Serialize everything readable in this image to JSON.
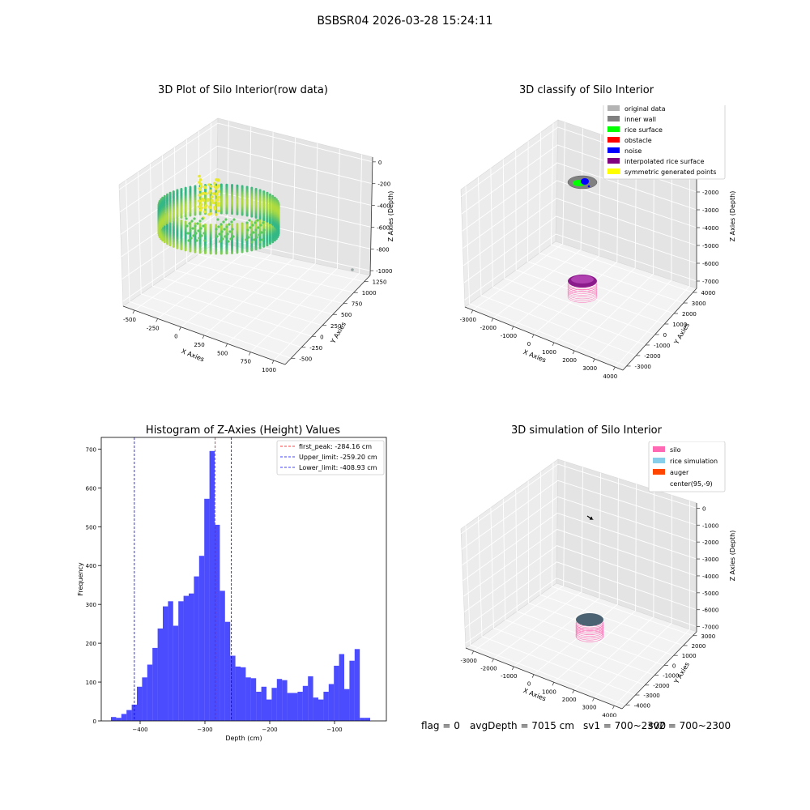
{
  "figure": {
    "suptitle": "BSBSR04 2026-03-28 15:24:11"
  },
  "panels": {
    "raw": {
      "title": "3D Plot of Silo Interior(row data)",
      "xlabel": "X Axies",
      "ylabel": "Y Axies",
      "zlabel": "Z Axies (Depth)",
      "xticks": [
        "-500",
        "-250",
        "0",
        "250",
        "500",
        "750",
        "1000"
      ],
      "yticks": [
        "-500",
        "-250",
        "0",
        "250",
        "500",
        "750",
        "1000",
        "1250"
      ],
      "zticks": [
        "0",
        "-200",
        "-400",
        "-600",
        "-800",
        "-1000"
      ]
    },
    "classify": {
      "title": "3D classify of Silo Interior",
      "xlabel": "X Axies",
      "ylabel": "Y Axies",
      "zlabel": "Z Axies (Depth)",
      "xticks": [
        "-3000",
        "-2000",
        "-1000",
        "0",
        "1000",
        "2000",
        "3000",
        "4000"
      ],
      "yticks": [
        "-3000",
        "-2000",
        "-1000",
        "0",
        "1000",
        "2000",
        "3000",
        "4000"
      ],
      "zticks": [
        "-1000",
        "-2000",
        "-3000",
        "-4000",
        "-5000",
        "-6000",
        "-7000"
      ],
      "legend": [
        {
          "label": "original data",
          "color": "#b4b4b4"
        },
        {
          "label": "inner wall",
          "color": "#808080"
        },
        {
          "label": "rice surface",
          "color": "#00ff00"
        },
        {
          "label": "obstacle",
          "color": "#ff0000"
        },
        {
          "label": "noise",
          "color": "#0000ff"
        },
        {
          "label": "interpolated rice surface",
          "color": "#800080"
        },
        {
          "label": "symmetric generated points",
          "color": "#ffff00"
        }
      ]
    },
    "simulation": {
      "title": "3D simulation of Silo Interior",
      "xlabel": "X Axies",
      "ylabel": "Y Axies",
      "zlabel": "Z Axies (Depth)",
      "xticks": [
        "-3000",
        "-2000",
        "-1000",
        "0",
        "1000",
        "2000",
        "3000",
        "4000"
      ],
      "yticks": [
        "-4000",
        "-3000",
        "-2000",
        "-1000",
        "0",
        "1000",
        "2000",
        "3000"
      ],
      "zticks": [
        "0",
        "-1000",
        "-2000",
        "-3000",
        "-4000",
        "-5000",
        "-6000",
        "-7000"
      ],
      "legend": [
        {
          "label": "silo",
          "color": "#ff69b4"
        },
        {
          "label": "rice simulation",
          "color": "#87ceeb"
        },
        {
          "label": "auger",
          "color": "#ff4500"
        },
        {
          "label": "center(95,-9)",
          "color": ""
        }
      ]
    },
    "status": {
      "flag": "flag = 0",
      "avg": "avgDepth = 7015 cm",
      "sv1": "sv1 = 700~2300",
      "sv2": "sv2 = 700~2300"
    }
  },
  "chart_data": [
    {
      "type": "scatter",
      "title": "3D Plot of Silo Interior(row data)",
      "xlabel": "X Axies",
      "ylabel": "Y Axies",
      "zlabel": "Z Axies (Depth)",
      "xlim": [
        -600,
        1100
      ],
      "ylim": [
        -600,
        1350
      ],
      "zlim": [
        -1050,
        0
      ],
      "description_points": "ring of points near depth -300 to -500 with color by depth"
    },
    {
      "type": "scatter",
      "title": "3D classify of Silo Interior",
      "xlabel": "X Axies",
      "ylabel": "Y Axies",
      "zlabel": "Z Axies (Depth)",
      "xlim": [
        -3500,
        4000
      ],
      "ylim": [
        -3500,
        4200
      ],
      "zlim": [
        -7500,
        -1000
      ]
    },
    {
      "type": "scatter",
      "title": "3D simulation of Silo Interior",
      "xlabel": "X Axies",
      "ylabel": "Y Axies",
      "zlabel": "Z Axies (Depth)",
      "xlim": [
        -3500,
        4000
      ],
      "ylim": [
        -4200,
        3500
      ],
      "zlim": [
        -7500,
        0
      ]
    },
    {
      "type": "bar",
      "title": "Histogram of Z-Axies (Height) Values",
      "xlabel": "Depth (cm)",
      "ylabel": "Frequency",
      "xlim": [
        -460,
        -20
      ],
      "ylim": [
        0,
        730
      ],
      "xticks": [
        -400,
        -300,
        -200,
        -100
      ],
      "yticks": [
        0,
        100,
        200,
        300,
        400,
        500,
        600,
        700
      ],
      "bin_start": -445,
      "bin_width": 8,
      "values": [
        10,
        8,
        18,
        28,
        42,
        88,
        112,
        145,
        188,
        238,
        295,
        308,
        245,
        308,
        322,
        328,
        372,
        425,
        572,
        695,
        505,
        335,
        255,
        168,
        140,
        138,
        112,
        110,
        75,
        88,
        55,
        85,
        108,
        105,
        72,
        72,
        75,
        90,
        115,
        60,
        55,
        75,
        95,
        142,
        172,
        82,
        155,
        185,
        8,
        8
      ],
      "color": "#0000ff",
      "vlines": [
        {
          "label": "first_peak: -284.16 cm",
          "x": -284.16,
          "color": "#ff0000"
        },
        {
          "label": "Upper_limit: -259.20 cm",
          "x": -259.2,
          "color": "#0000ff"
        },
        {
          "label": "Lower_limit: -408.93 cm",
          "x": -408.93,
          "color": "#0000ff"
        }
      ]
    }
  ]
}
